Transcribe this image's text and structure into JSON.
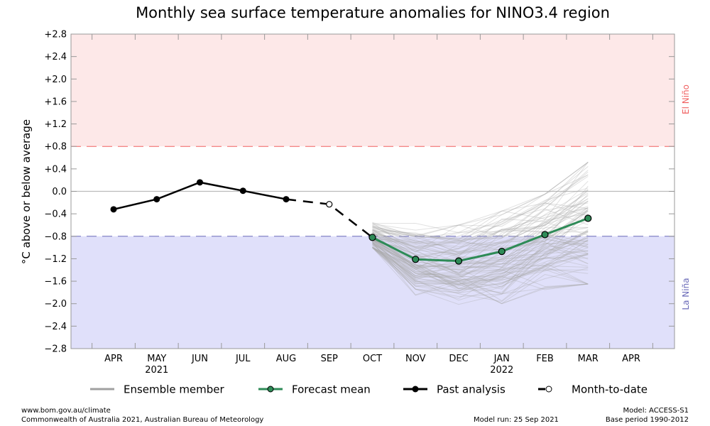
{
  "chart_data": {
    "type": "line",
    "title": "Monthly sea surface temperature anomalies for NINO3.4 region",
    "ylabel": "°C above or below average",
    "xlabel": "",
    "ylim": [
      -2.8,
      2.8
    ],
    "yticks": [
      "+2.8",
      "+2.4",
      "+2.0",
      "+1.6",
      "+1.2",
      "+0.8",
      "+0.4",
      "0.0",
      "−0.4",
      "−0.8",
      "−1.2",
      "−1.6",
      "−2.0",
      "−2.4",
      "−2.8"
    ],
    "ytick_values": [
      2.8,
      2.4,
      2.0,
      1.6,
      1.2,
      0.8,
      0.4,
      0.0,
      -0.4,
      -0.8,
      -1.2,
      -1.6,
      -2.0,
      -2.4,
      -2.8
    ],
    "categories": [
      "APR",
      "MAY",
      "JUN",
      "JUL",
      "AUG",
      "SEP",
      "OCT",
      "NOV",
      "DEC",
      "JAN",
      "FEB",
      "MAR",
      "APR"
    ],
    "year_labels": [
      {
        "index": 1,
        "label": "2021"
      },
      {
        "index": 9,
        "label": "2022"
      }
    ],
    "thresholds": {
      "el_nino": {
        "value": 0.8,
        "label": "El Niño",
        "color": "#f06060",
        "fill": "#fde8e8"
      },
      "la_nina": {
        "value": -0.8,
        "label": "La Niña",
        "color": "#6a6ab8",
        "fill": "#e0e0fa"
      }
    },
    "series": [
      {
        "name": "Past analysis",
        "color": "#000000",
        "indices": [
          0,
          1,
          2,
          3,
          4
        ],
        "values": [
          -0.32,
          -0.14,
          0.16,
          0.01,
          -0.14
        ]
      },
      {
        "name": "Month-to-date",
        "color": "#000000",
        "indices": [
          5
        ],
        "values": [
          -0.23
        ]
      },
      {
        "name": "Forecast mean",
        "color": "#2e8b57",
        "indices": [
          6,
          7,
          8,
          9,
          10,
          11
        ],
        "values": [
          -0.82,
          -1.21,
          -1.24,
          -1.07,
          -0.77,
          -0.48
        ]
      },
      {
        "name": "Ensemble member",
        "color": "#a0a0a0",
        "indices": [
          6,
          7,
          8,
          9,
          10,
          11
        ],
        "note": "~99 members spread around forecast mean",
        "range_min": [
          -1.0,
          -1.85,
          -2.05,
          -2.0,
          -1.75,
          -1.65
        ],
        "range_max": [
          -0.42,
          -0.55,
          -0.6,
          -0.35,
          -0.05,
          0.52
        ]
      }
    ],
    "legend": {
      "placement": "bottom",
      "items": [
        {
          "label": "Ensemble member",
          "key": "ensemble"
        },
        {
          "label": "Forecast mean",
          "key": "mean"
        },
        {
          "label": "Past analysis",
          "key": "past"
        },
        {
          "label": "Month-to-date",
          "key": "mtd"
        }
      ]
    },
    "grid": false
  },
  "footer": {
    "url": "www.bom.gov.au/climate",
    "copyright": "Commonwealth of Australia 2021, Australian Bureau of Meteorology",
    "model_run": "Model run: 25 Sep 2021",
    "model": "Model: ACCESS-S1",
    "base_period": "Base period 1990-2012"
  }
}
